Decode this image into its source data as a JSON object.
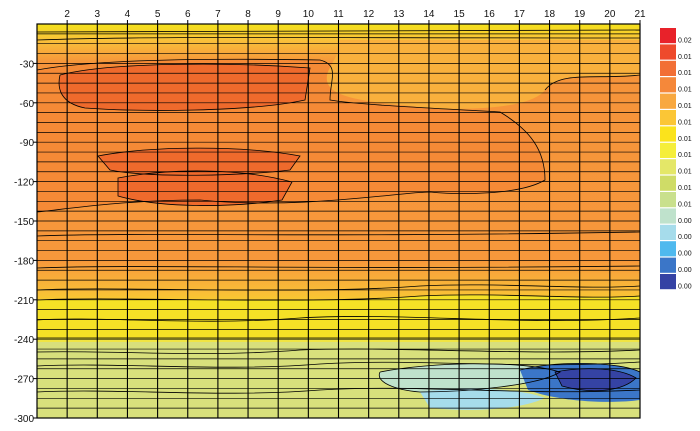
{
  "chart_data": {
    "type": "heatmap",
    "title": "",
    "xlabel": "",
    "ylabel": "",
    "x_ticks": [
      "2",
      "3",
      "4",
      "5",
      "6",
      "7",
      "8",
      "9",
      "10",
      "11",
      "12",
      "13",
      "14",
      "15",
      "16",
      "17",
      "18",
      "19",
      "20",
      "21"
    ],
    "y_ticks": [
      "-30",
      "-60",
      "-90",
      "-120",
      "-150",
      "-180",
      "-210",
      "-240",
      "-270",
      "-300"
    ],
    "y_range": [
      0,
      -300
    ],
    "x_range": [
      1,
      21
    ],
    "grid": true,
    "x_axis_position": "top",
    "legend_position": "right",
    "legend": [
      {
        "label": "0.02",
        "color": "#e8222a"
      },
      {
        "label": "0.01",
        "color": "#ee4a2c"
      },
      {
        "label": "0.01",
        "color": "#f26f35"
      },
      {
        "label": "0.01",
        "color": "#f5883a"
      },
      {
        "label": "0.01",
        "color": "#f8a840"
      },
      {
        "label": "0.01",
        "color": "#fbc636"
      },
      {
        "label": "0.01",
        "color": "#fbe31c"
      },
      {
        "label": "0.01",
        "color": "#f5ee3a"
      },
      {
        "label": "0.01",
        "color": "#e4e768"
      },
      {
        "label": "0.01",
        "color": "#cfdc67"
      },
      {
        "label": "0.01",
        "color": "#c9e08d"
      },
      {
        "label": "0.00",
        "color": "#bfe2cc"
      },
      {
        "label": "0.00",
        "color": "#a6dceb"
      },
      {
        "label": "0.00",
        "color": "#4fb9ee"
      },
      {
        "label": "0.00",
        "color": "#3b76c8"
      },
      {
        "label": "0.00",
        "color": "#3543a4"
      }
    ]
  }
}
